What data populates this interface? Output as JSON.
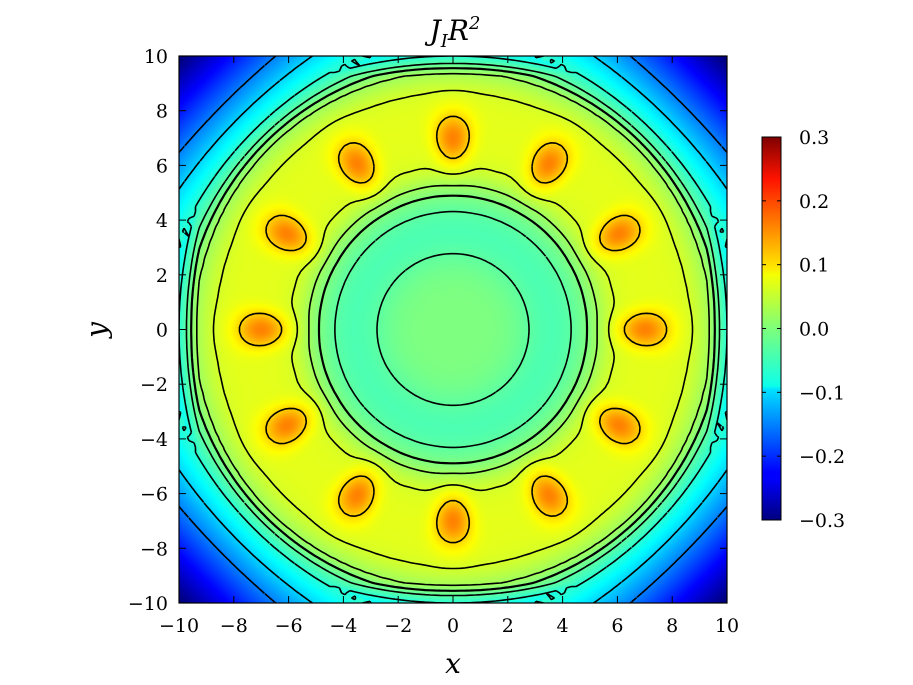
{
  "chart_data": {
    "type": "heatmap",
    "title": "J_I R^2",
    "title_main": "J",
    "title_sub": "I",
    "title_var": "R",
    "title_sup": "2",
    "xlabel": "x",
    "ylabel": "y",
    "xlim": [
      -10,
      10
    ],
    "ylim": [
      -10,
      10
    ],
    "x_ticks": [
      -10,
      -8,
      -6,
      -4,
      -2,
      0,
      2,
      4,
      6,
      8,
      10
    ],
    "x_tick_labels": [
      "−10",
      "−8",
      "−6",
      "−4",
      "−2",
      "0",
      "2",
      "4",
      "6",
      "8",
      "10"
    ],
    "y_ticks": [
      -10,
      -8,
      -6,
      -4,
      -2,
      0,
      2,
      4,
      6,
      8,
      10
    ],
    "y_tick_labels": [
      "−10",
      "−8",
      "−6",
      "−4",
      "−2",
      "0",
      "2",
      "4",
      "6",
      "8",
      "10"
    ],
    "colorbar": {
      "range": [
        -0.3,
        0.3
      ],
      "colormap": "jet",
      "ticks": [
        -0.3,
        -0.2,
        -0.1,
        0.0,
        0.1,
        0.2,
        0.3
      ],
      "tick_labels": [
        "−0.3",
        "−0.2",
        "−0.1",
        "0.0",
        "0.1",
        "0.2",
        "0.3"
      ]
    },
    "contour_levels": [
      -0.15,
      -0.1,
      -0.05,
      -0.02,
      0.0,
      0.02,
      0.05,
      0.1
    ],
    "negative_contours": "dashed",
    "positive_contours": "solid",
    "field": {
      "symmetry": "12-fold",
      "center_value": 0.0,
      "inner_ring_value": -0.03,
      "lobe_peak_value": 0.15,
      "lobe_count": 12,
      "lobe_radius": 7.0,
      "corner_value": -0.3
    },
    "grid": false,
    "legend": "none"
  }
}
